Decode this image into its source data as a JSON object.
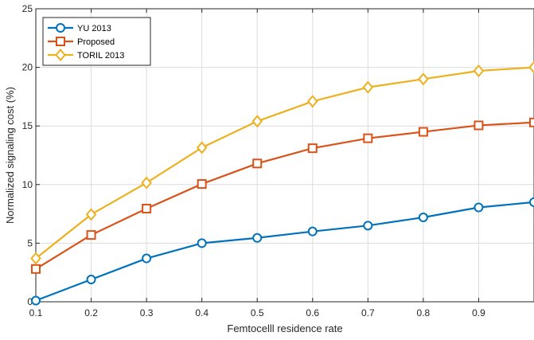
{
  "chart_data": {
    "type": "line",
    "title": "",
    "xlabel": "Femtocelll residence rate",
    "ylabel": "Normalized signaling cost (%)",
    "xlim": [
      0.1,
      1.0
    ],
    "ylim": [
      0,
      25
    ],
    "xticks": [
      "0.1",
      "0.2",
      "0.3",
      "0.4",
      "0.5",
      "0.6",
      "0.7",
      "0.8",
      "0.9"
    ],
    "yticks": [
      "0",
      "5",
      "10",
      "15",
      "20",
      "25"
    ],
    "grid": true,
    "legend_position": "top-left",
    "x": [
      0.1,
      0.2,
      0.3,
      0.4,
      0.5,
      0.6,
      0.7,
      0.8,
      0.9,
      1.0
    ],
    "series": [
      {
        "name": "YU 2013",
        "marker": "circle",
        "color": "#0072BD",
        "values": [
          0.1,
          1.9,
          3.7,
          5.0,
          5.45,
          6.0,
          6.5,
          7.2,
          8.05,
          8.5
        ]
      },
      {
        "name": "Proposed",
        "marker": "square",
        "color": "#D95319",
        "values": [
          2.8,
          5.7,
          7.95,
          10.05,
          11.8,
          13.1,
          13.95,
          14.5,
          15.05,
          15.3
        ]
      },
      {
        "name": "TORIL 2013",
        "marker": "diamond",
        "color": "#EDB120",
        "values": [
          3.7,
          7.45,
          10.15,
          13.15,
          15.4,
          17.1,
          18.3,
          19.0,
          19.7,
          20.0
        ]
      }
    ]
  }
}
